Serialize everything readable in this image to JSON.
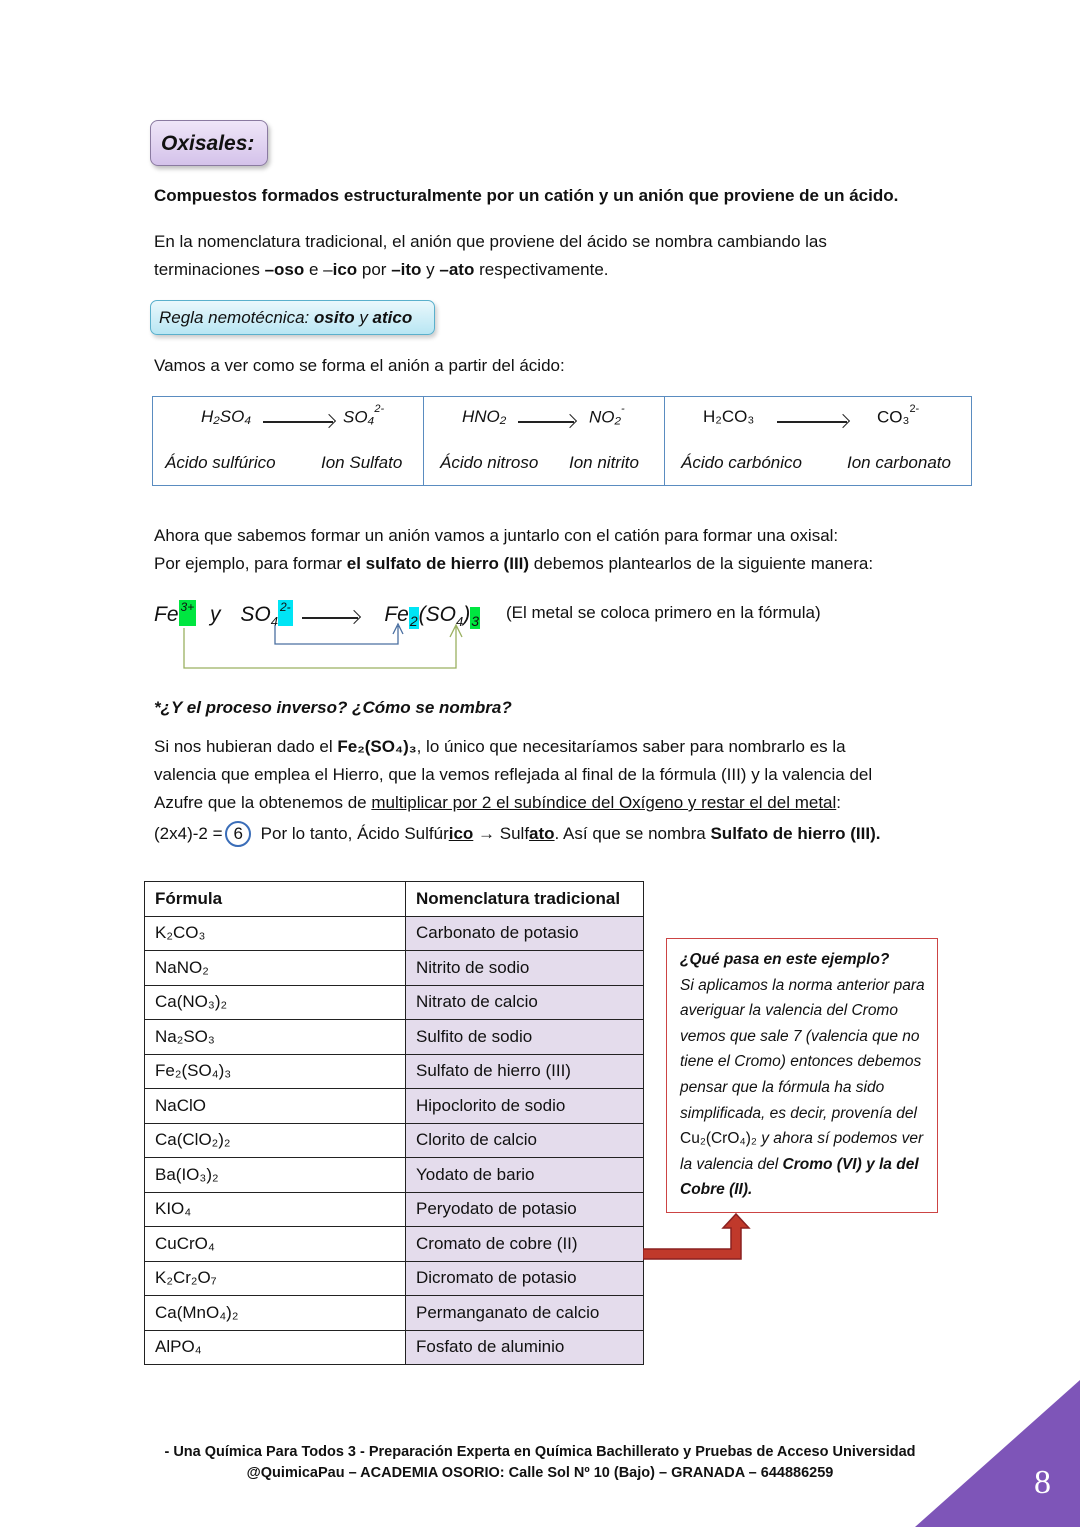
{
  "section_title": "Oxisales:",
  "definition": "Compuestos formados estructuralmente por un catión y un anión que proviene de un ácido.",
  "intro": {
    "line1": "En la nomenclatura tradicional, el anión que proviene del ácido se nombra cambiando las",
    "l2a": "terminaciones ",
    "l2b": "–oso",
    "l2c": " e –",
    "l2d": "ico",
    "l2e": " por ",
    "l2f": "–ito",
    "l2g": " y ",
    "l2h": "–ato",
    "l2i": " respectivamente."
  },
  "rule": {
    "prefix": "Regla nemotécnica: ",
    "w1": "osito",
    "mid": " y ",
    "w2": "atico"
  },
  "formation_intro": "Vamos a ver como se forma el anión a partir del ácido:",
  "examples": [
    {
      "acid": "H₂SO₄",
      "anion": "SO₄",
      "charge": "2-",
      "acid_name": "Ácido sulfúrico",
      "anion_name": "Ion Sulfato"
    },
    {
      "acid": "HNO₂",
      "anion": "NO₂",
      "charge": "-",
      "acid_name": "Ácido nitroso",
      "anion_name": "Ion nitrito"
    },
    {
      "acid": "H₂CO₃",
      "anion": "CO₃",
      "charge": "2-",
      "acid_name": "Ácido carbónico",
      "anion_name": "Ion carbonato"
    }
  ],
  "combine": {
    "line1": "Ahora que sabemos formar un anión vamos a juntarlo con el catión para formar una oxisal:",
    "l2a": "Por ejemplo, para formar ",
    "l2b": "el sulfato de hierro (III)",
    "l2c": " debemos plantearlos de la siguiente manera:"
  },
  "formula_example": {
    "cation": "Fe",
    "cation_charge": "3+",
    "y": "y",
    "anion": "SO",
    "anion_sub": "4",
    "anion_charge": "2-",
    "product_fe": "Fe",
    "product_fe_sub": "2",
    "product_open": "(SO",
    "product_o_sub": "4",
    "product_close": ")",
    "product_sub": "3",
    "note": "(El metal se coloca primero en la fórmula)"
  },
  "inverse": {
    "question": "*¿Y el proceso inverso? ¿Cómo se nombra?",
    "l1a": "Si nos hubieran dado el ",
    "l1b": "Fe₂(SO₄)₃",
    "l1c": ", lo único que necesitaríamos saber para nombrarlo es la",
    "l2": "valencia que emplea el Hierro, que la vemos reflejada al final de la fórmula (III) y la valencia del",
    "l3a": "Azufre que la obtenemos de ",
    "l3b": "multiplicar por 2 el subíndice del Oxígeno y restar el del metal",
    "l3c": ":",
    "l4a": "(2x4)-2 = ",
    "l4circle": "6",
    "l4b": "  Por lo tanto, Ácido Sulfúr",
    "l4c": "ico",
    "l4d": " → Sulf",
    "l4e": "ato",
    "l4f": ". Así que se nombra ",
    "l4g": "Sulfato de hierro (III)."
  },
  "table": {
    "headers": [
      "Fórmula",
      "Nomenclatura tradicional"
    ],
    "rows": [
      [
        "K₂CO₃",
        "Carbonato de potasio"
      ],
      [
        "NaNO₂",
        "Nitrito de sodio"
      ],
      [
        "Ca(NO₃)₂",
        "Nitrato de calcio"
      ],
      [
        "Na₂SO₃",
        "Sulfito de sodio"
      ],
      [
        "Fe₂(SO₄)₃",
        "Sulfato de hierro (III)"
      ],
      [
        "NaClO",
        "Hipoclorito de sodio"
      ],
      [
        "Ca(ClO₂)₂",
        "Clorito de calcio"
      ],
      [
        "Ba(IO₃)₂",
        "Yodato de bario"
      ],
      [
        "KIO₄",
        "Peryodato de potasio"
      ],
      [
        "CuCrO₄",
        "Cromato de cobre (II)"
      ],
      [
        "K₂Cr₂O₇",
        "Dicromato de potasio"
      ],
      [
        "Ca(MnO₄)₂",
        "Permanganato de calcio"
      ],
      [
        "AlPO₄",
        "Fosfato de aluminio"
      ]
    ]
  },
  "callout": {
    "title": "¿Qué pasa en este ejemplo?",
    "body1": "Si aplicamos la norma anterior para averiguar la valencia del Cromo vemos que sale 7 (valencia que no tiene el Cromo) entonces debemos pensar que la fórmula ha sido simplificada, es decir, provenía del ",
    "formula": "Cu₂(CrO₄)₂",
    "body2": " y ahora sí podemos ver la valencia del ",
    "bold": "Cromo (VI) y la del Cobre (II)."
  },
  "footer": {
    "line1": "- Una Química Para Todos 3 - Preparación Experta en Química Bachillerato y Pruebas de Acceso Universidad",
    "line2": "@QuimicaPau – ACADEMIA OSORIO: Calle Sol Nº 10 (Bajo) – GRANADA –  644886259"
  },
  "page_number": "8",
  "colors": {
    "highlight_green": "#00e640",
    "highlight_cyan": "#00e5f5",
    "callout_border": "#cc4444",
    "table_highlight": "#e4dcec",
    "corner": "#7e55b8"
  }
}
